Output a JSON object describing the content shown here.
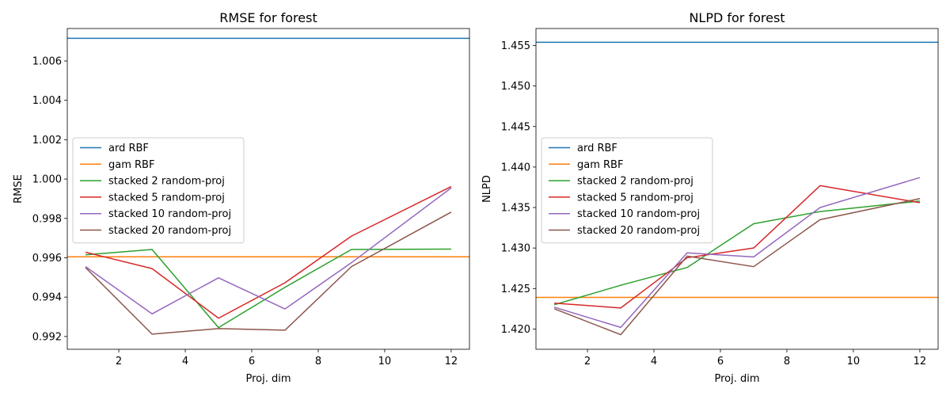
{
  "colors": {
    "ard RBF": "#1f77b4",
    "gam RBF": "#ff7f0e",
    "stacked 2 random-proj": "#2ca02c",
    "stacked 5 random-proj": "#d62728",
    "stacked 10 random-proj": "#9467bd",
    "stacked 20 random-proj": "#8c564b"
  },
  "chart_data": [
    {
      "type": "line",
      "title": "RMSE for forest",
      "xlabel": "Proj. dim",
      "ylabel": "RMSE",
      "xlim": [
        0.45,
        12.55
      ],
      "ylim": [
        0.99135,
        1.00765
      ],
      "xticks": [
        2,
        4,
        6,
        8,
        10,
        12
      ],
      "xtick_labels": [
        "2",
        "4",
        "6",
        "8",
        "10",
        "12"
      ],
      "yticks": [
        0.992,
        0.994,
        0.996,
        0.998,
        1.0,
        1.002,
        1.004,
        1.006
      ],
      "ytick_labels": [
        "0.992",
        "0.994",
        "0.996",
        "0.998",
        "1.000",
        "1.002",
        "1.004",
        "1.006"
      ],
      "grid": false,
      "legend_position": "center-left",
      "x": [
        1,
        3,
        5,
        7,
        9,
        12
      ],
      "hlines": [
        {
          "name": "ard RBF",
          "y": 1.00715
        },
        {
          "name": "gam RBF",
          "y": 0.99605
        }
      ],
      "series": [
        {
          "name": "stacked 2 random-proj",
          "values": [
            0.99615,
            0.99642,
            0.99245,
            0.9945,
            0.99642,
            0.99644
          ]
        },
        {
          "name": "stacked 5 random-proj",
          "values": [
            0.99628,
            0.99545,
            0.99293,
            0.99473,
            0.9971,
            0.99962
          ]
        },
        {
          "name": "stacked 10 random-proj",
          "values": [
            0.99555,
            0.99315,
            0.99498,
            0.9934,
            0.99575,
            0.99955
          ]
        },
        {
          "name": "stacked 20 random-proj",
          "values": [
            0.9955,
            0.99212,
            0.9924,
            0.99232,
            0.99555,
            0.99832
          ]
        }
      ]
    },
    {
      "type": "line",
      "title": "NLPD for forest",
      "xlabel": "Proj. dim",
      "ylabel": "NLPD",
      "xlim": [
        0.45,
        12.55
      ],
      "ylim": [
        1.4175,
        1.4571
      ],
      "xticks": [
        2,
        4,
        6,
        8,
        10,
        12
      ],
      "xtick_labels": [
        "2",
        "4",
        "6",
        "8",
        "10",
        "12"
      ],
      "yticks": [
        1.42,
        1.425,
        1.43,
        1.435,
        1.44,
        1.445,
        1.45,
        1.455
      ],
      "ytick_labels": [
        "1.420",
        "1.425",
        "1.430",
        "1.435",
        "1.440",
        "1.445",
        "1.450",
        "1.455"
      ],
      "grid": false,
      "legend_position": "center-left",
      "x": [
        1,
        3,
        5,
        7,
        9,
        12
      ],
      "hlines": [
        {
          "name": "ard RBF",
          "y": 1.4554
        },
        {
          "name": "gam RBF",
          "y": 1.4239
        }
      ],
      "series": [
        {
          "name": "stacked 2 random-proj",
          "values": [
            1.423,
            1.4254,
            1.4276,
            1.433,
            1.4345,
            1.4358
          ]
        },
        {
          "name": "stacked 5 random-proj",
          "values": [
            1.4232,
            1.4226,
            1.4288,
            1.43,
            1.4377,
            1.4356
          ]
        },
        {
          "name": "stacked 10 random-proj",
          "values": [
            1.4227,
            1.4202,
            1.4294,
            1.4289,
            1.435,
            1.4387
          ]
        },
        {
          "name": "stacked 20 random-proj",
          "values": [
            1.4225,
            1.4193,
            1.429,
            1.4277,
            1.4335,
            1.4361
          ]
        }
      ]
    }
  ]
}
